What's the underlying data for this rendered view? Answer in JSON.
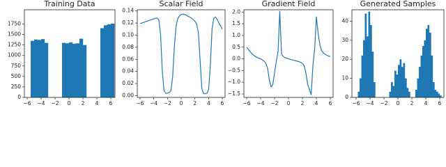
{
  "chart_data": [
    {
      "type": "histogram",
      "title": "Training Data",
      "color": "#1f77b4",
      "bins": [
        -5.5,
        -5.0,
        -4.5,
        -4.0,
        -3.5,
        -3.0,
        -2.5,
        -2.0,
        -1.5,
        -1.0,
        -0.5,
        0.0,
        0.5,
        1.0,
        1.5,
        2.0,
        2.5,
        3.0,
        3.5,
        4.0,
        4.5,
        5.0,
        5.5,
        6.0,
        6.5
      ],
      "counts": [
        1350,
        1380,
        1370,
        1390,
        1300,
        0,
        0,
        0,
        0,
        1300,
        1290,
        1310,
        1280,
        1290,
        1400,
        1250,
        0,
        0,
        0,
        0,
        1650,
        1720,
        1740,
        1760
      ],
      "xlim": [
        -6.4,
        6.6
      ],
      "xticks": [
        {
          "value": -6,
          "label": "−6"
        },
        {
          "value": -4,
          "label": "−4"
        },
        {
          "value": -2,
          "label": "−2"
        },
        0,
        2,
        4,
        6
      ],
      "ylim": [
        0,
        2090
      ],
      "yticks": [
        0,
        250,
        500,
        750,
        1000,
        1250,
        1500,
        1750
      ]
    },
    {
      "type": "line",
      "title": "Scalar Field",
      "color": "#1f77b4",
      "x": [
        -6,
        -5.75,
        -5.5,
        -5.25,
        -5,
        -4.75,
        -4.5,
        -4.25,
        -4,
        -3.75,
        -3.5,
        -3.25,
        -3,
        -2.75,
        -2.5,
        -2.25,
        -2,
        -1.75,
        -1.5,
        -1.25,
        -1,
        -0.75,
        -0.5,
        -0.25,
        0,
        0.25,
        0.5,
        0.75,
        1,
        1.25,
        1.5,
        1.75,
        2,
        2.25,
        2.5,
        2.75,
        3,
        3.25,
        3.5,
        3.75,
        4,
        4.25,
        4.5,
        4.75,
        5,
        5.25,
        5.5,
        5.75,
        6
      ],
      "values": [
        0.119,
        0.12,
        0.121,
        0.122,
        0.123,
        0.124,
        0.125,
        0.126,
        0.127,
        0.128,
        0.128,
        0.125,
        0.1,
        0.04,
        0.008,
        0.004,
        0.004,
        0.005,
        0.008,
        0.03,
        0.08,
        0.115,
        0.127,
        0.132,
        0.134,
        0.135,
        0.134,
        0.133,
        0.131,
        0.13,
        0.128,
        0.126,
        0.123,
        0.118,
        0.105,
        0.06,
        0.012,
        0.004,
        0.003,
        0.004,
        0.01,
        0.05,
        0.11,
        0.128,
        0.13,
        0.126,
        0.12,
        0.115,
        0.11
      ],
      "xlim": [
        -6.4,
        6.4
      ],
      "xticks": [
        {
          "value": -6,
          "label": "−6"
        },
        {
          "value": -4,
          "label": "−4"
        },
        {
          "value": -2,
          "label": "−2"
        },
        0,
        2,
        4,
        6
      ],
      "ylim": [
        -0.003,
        0.142
      ],
      "yticks": [
        {
          "value": 0,
          "label": "0.00"
        },
        0.02,
        0.04,
        0.06,
        0.08,
        {
          "value": 0.1,
          "label": "0.10"
        },
        0.12,
        0.14
      ]
    },
    {
      "type": "line",
      "title": "Gradient Field",
      "color": "#1f77b4",
      "x": [
        -6,
        -5.75,
        -5.5,
        -5.25,
        -5,
        -4.75,
        -4.5,
        -4.25,
        -4,
        -3.75,
        -3.5,
        -3.25,
        -3,
        -2.75,
        -2.5,
        -2.25,
        -2,
        -1.75,
        -1.5,
        -1.25,
        -1,
        -0.75,
        -0.5,
        -0.25,
        0,
        0.25,
        0.5,
        0.75,
        1,
        1.25,
        1.5,
        1.75,
        2,
        2.25,
        2.5,
        2.75,
        3,
        3.25,
        3.5,
        3.75,
        4,
        4.25,
        4.5,
        4.75,
        5,
        5.25,
        5.5,
        5.75,
        6
      ],
      "values": [
        0.5,
        0.4,
        0.3,
        0.22,
        0.15,
        0.1,
        0.06,
        0.03,
        0.0,
        -0.05,
        -0.1,
        -0.2,
        -0.4,
        -0.9,
        -1.2,
        -1.1,
        -0.6,
        -0.1,
        0.3,
        2.05,
        0.2,
        0.1,
        0.05,
        0.03,
        0.0,
        -0.02,
        -0.04,
        -0.06,
        -0.08,
        -0.1,
        -0.12,
        -0.15,
        -0.2,
        -0.3,
        -0.6,
        -1.1,
        -1.3,
        -1.55,
        -0.3,
        0.4,
        1.8,
        1.1,
        0.6,
        0.35,
        0.25,
        0.2,
        0.15,
        0.12,
        0.1
      ],
      "xlim": [
        -6.4,
        6.4
      ],
      "xticks": [
        {
          "value": -6,
          "label": "−6"
        },
        {
          "value": -4,
          "label": "−4"
        },
        {
          "value": -2,
          "label": "−2"
        },
        0,
        2,
        4,
        6
      ],
      "ylim": [
        -1.65,
        2.1
      ],
      "yticks": [
        {
          "value": -1.5,
          "label": "−1.5"
        },
        {
          "value": -1,
          "label": "−1.0"
        },
        {
          "value": -0.5,
          "label": "−0.5"
        },
        {
          "value": 0,
          "label": "0.0"
        },
        0.5,
        {
          "value": 1,
          "label": "1.0"
        },
        1.5,
        {
          "value": 2,
          "label": "2.0"
        }
      ]
    },
    {
      "type": "histogram",
      "title": "Generated Samples",
      "color": "#1f77b4",
      "bins": [
        -5.75,
        -5.5,
        -5.25,
        -5.0,
        -4.75,
        -4.5,
        -4.25,
        -4.0,
        -3.75,
        -3.5,
        -3.25,
        -3.0,
        -2.75,
        -2.5,
        -2.25,
        -2.0,
        -1.75,
        -1.5,
        -1.25,
        -1.0,
        -0.75,
        -0.5,
        -0.25,
        0.0,
        0.25,
        0.5,
        0.75,
        1.0,
        1.25,
        1.5,
        1.75,
        2.0,
        2.25,
        2.5,
        2.75,
        3.0,
        3.25,
        3.5,
        3.75,
        4.0,
        4.25,
        4.5,
        4.75,
        5.0,
        5.25,
        5.5,
        5.75,
        6.0,
        6.25
      ],
      "counts": [
        3,
        10,
        22,
        30,
        44,
        32,
        45,
        38,
        24,
        8,
        0,
        0,
        0,
        0,
        0,
        0,
        0,
        0,
        3,
        8,
        6,
        14,
        12,
        17,
        20,
        16,
        18,
        10,
        5,
        3,
        0,
        0,
        0,
        4,
        10,
        16,
        22,
        27,
        30,
        36,
        38,
        34,
        22,
        8,
        4,
        3,
        2,
        1
      ],
      "xlim": [
        -6.6,
        6.6
      ],
      "xticks": [
        {
          "value": -6,
          "label": "−6"
        },
        {
          "value": -4,
          "label": "−4"
        },
        {
          "value": -2,
          "label": "−2"
        },
        0,
        2,
        4,
        6
      ],
      "ylim": [
        0,
        46
      ],
      "yticks": [
        0,
        10,
        20,
        30,
        40
      ]
    }
  ]
}
